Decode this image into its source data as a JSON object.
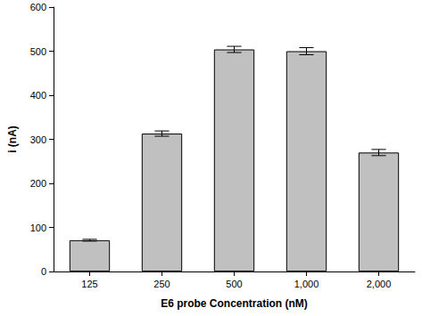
{
  "chart_data": {
    "type": "bar",
    "x_label": "E6 probe Concentration (nM)",
    "y_label": "i (nA)",
    "categories": [
      "125",
      "250",
      "500",
      "1,000",
      "2,000"
    ],
    "values": [
      71,
      313,
      504,
      500,
      270
    ],
    "errors": [
      2,
      6,
      7,
      8,
      7
    ],
    "color": "#c0c0c0",
    "ylim": [
      0,
      600
    ],
    "yticks": [
      0,
      100,
      200,
      300,
      400,
      500,
      600
    ],
    "grid": false
  }
}
